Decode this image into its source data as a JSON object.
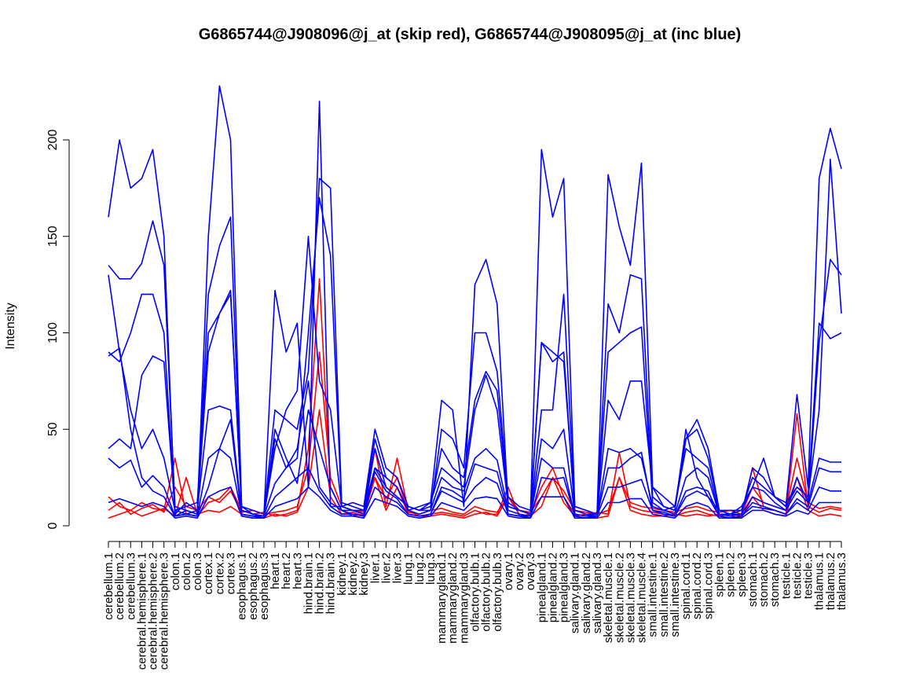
{
  "chart_data": {
    "type": "line",
    "title": "G6865744@J908096@j_at (skip red), G6865744@J908095@j_at (inc blue)",
    "xlabel": "",
    "ylabel": "Intensity",
    "ylim": [
      0,
      228
    ],
    "yticks": [
      0,
      50,
      100,
      150,
      200
    ],
    "grid": false,
    "legend": "none",
    "colors": {
      "red": "#ff0000",
      "blue": "#0000ff"
    },
    "categories": [
      "cerebellum.1",
      "cerebellum.2",
      "cerebellum.3",
      "cerebral.hemisphere.1",
      "cerebral.hemisphere.2",
      "cerebral.hemisphere.3",
      "colon.1",
      "colon.2",
      "colon.3",
      "cortex.1",
      "cortex.2",
      "cortex.3",
      "esophagus.1",
      "esophagus.2",
      "esophagus.3",
      "heart.1",
      "heart.2",
      "heart.3",
      "hind.brain.1",
      "hind.brain.2",
      "hind.brain.3",
      "kidney.1",
      "kidney.2",
      "kidney.3",
      "liver.1",
      "liver.2",
      "liver.3",
      "lung.1",
      "lung.2",
      "lung.3",
      "mammarygland.1",
      "mammarygland.2",
      "mammarygland.3",
      "olfactory.bulb.1",
      "olfactory.bulb.2",
      "olfactory.bulb.3",
      "ovary.1",
      "ovary.2",
      "ovary.3",
      "pinealgland.1",
      "pinealgland.2",
      "pinealgland.3",
      "salivary.gland.1",
      "salivary.gland.2",
      "salivary.gland.3",
      "skeletal.muscle.1",
      "skeletal.muscle.2",
      "skeletal.muscle.3",
      "skeletal.muscle.4",
      "small.intestine.1",
      "small.intestine.2",
      "small.intestine.3",
      "spinal.cord.1",
      "spinal.cord.2",
      "spinal.cord.3",
      "spleen.1",
      "spleen.2",
      "spleen.3",
      "stomach.1",
      "stomach.2",
      "stomach.3",
      "testicle.1",
      "testicle.2",
      "testicle.3",
      "thalamus.1",
      "thalamus.2",
      "thalamus.3"
    ],
    "series": [
      {
        "color": "red",
        "values": [
          15,
          10,
          8,
          12,
          9,
          8,
          35,
          6,
          5,
          12,
          14,
          20,
          8,
          6,
          7,
          5,
          6,
          8,
          40,
          128,
          20,
          8,
          5,
          6,
          40,
          10,
          35,
          8,
          5,
          6,
          7,
          6,
          5,
          8,
          6,
          6,
          20,
          5,
          6,
          20,
          30,
          15,
          6,
          5,
          7,
          6,
          38,
          10,
          8,
          7,
          6,
          5,
          7,
          8,
          6,
          5,
          6,
          5,
          30,
          10,
          8,
          6,
          58,
          10,
          7,
          9,
          8
        ]
      },
      {
        "color": "red",
        "values": [
          4,
          6,
          8,
          5,
          7,
          9,
          5,
          25,
          6,
          8,
          7,
          10,
          6,
          5,
          4,
          6,
          5,
          7,
          20,
          60,
          15,
          6,
          7,
          5,
          25,
          8,
          20,
          6,
          5,
          5,
          6,
          5,
          4,
          6,
          7,
          5,
          15,
          6,
          5,
          10,
          25,
          12,
          5,
          6,
          4,
          5,
          25,
          8,
          6,
          5,
          5,
          6,
          5,
          6,
          5,
          6,
          5,
          4,
          15,
          8,
          6,
          5,
          25,
          8,
          5,
          6,
          5
        ]
      },
      {
        "color": "red",
        "values": [
          8,
          12,
          6,
          9,
          11,
          7,
          20,
          10,
          8,
          15,
          12,
          18,
          7,
          8,
          6,
          7,
          8,
          10,
          30,
          90,
          25,
          10,
          8,
          7,
          25,
          14,
          25,
          7,
          6,
          8,
          9,
          7,
          6,
          10,
          8,
          7,
          15,
          8,
          7,
          15,
          25,
          18,
          8,
          7,
          6,
          8,
          25,
          12,
          10,
          9,
          8,
          7,
          9,
          10,
          8,
          7,
          8,
          6,
          20,
          12,
          10,
          8,
          35,
          12,
          9,
          10,
          9
        ]
      },
      {
        "color": "blue",
        "values": [
          160,
          200,
          175,
          180,
          195,
          150,
          5,
          8,
          6,
          150,
          228,
          200,
          10,
          6,
          5,
          122,
          90,
          105,
          20,
          220,
          10,
          10,
          8,
          6,
          40,
          20,
          15,
          10,
          8,
          12,
          65,
          60,
          10,
          125,
          138,
          115,
          10,
          8,
          6,
          195,
          160,
          180,
          10,
          8,
          6,
          182,
          155,
          135,
          188,
          20,
          10,
          8,
          50,
          25,
          15,
          8,
          6,
          10,
          20,
          35,
          15,
          10,
          68,
          20,
          180,
          206,
          185
        ]
      },
      {
        "color": "blue",
        "values": [
          130,
          90,
          60,
          40,
          50,
          35,
          8,
          10,
          12,
          100,
          110,
          120,
          10,
          8,
          6,
          60,
          55,
          50,
          80,
          180,
          175,
          12,
          10,
          8,
          30,
          25,
          20,
          8,
          6,
          8,
          50,
          45,
          30,
          100,
          100,
          80,
          15,
          10,
          8,
          95,
          90,
          85,
          8,
          6,
          6,
          115,
          100,
          130,
          128,
          15,
          10,
          8,
          45,
          55,
          40,
          8,
          8,
          8,
          25,
          20,
          15,
          10,
          20,
          15,
          105,
          97,
          100
        ]
      },
      {
        "color": "blue",
        "values": [
          90,
          85,
          100,
          120,
          120,
          100,
          6,
          12,
          8,
          90,
          110,
          122,
          8,
          6,
          5,
          45,
          30,
          35,
          100,
          170,
          140,
          10,
          12,
          10,
          50,
          30,
          25,
          10,
          8,
          10,
          40,
          30,
          25,
          65,
          80,
          70,
          12,
          8,
          6,
          95,
          85,
          90,
          6,
          5,
          6,
          90,
          95,
          100,
          103,
          12,
          8,
          10,
          40,
          35,
          30,
          6,
          6,
          8,
          20,
          18,
          12,
          8,
          25,
          12,
          95,
          138,
          130
        ]
      },
      {
        "color": "blue",
        "values": [
          135,
          128,
          128,
          136,
          158,
          135,
          10,
          8,
          6,
          120,
          145,
          160,
          8,
          6,
          5,
          40,
          60,
          70,
          150,
          75,
          60,
          10,
          8,
          8,
          45,
          25,
          20,
          8,
          10,
          12,
          30,
          25,
          20,
          60,
          78,
          60,
          10,
          8,
          6,
          60,
          60,
          120,
          10,
          8,
          6,
          65,
          55,
          75,
          75,
          20,
          15,
          10,
          45,
          50,
          35,
          8,
          6,
          6,
          30,
          25,
          15,
          12,
          20,
          15,
          60,
          190,
          110
        ]
      },
      {
        "color": "blue",
        "values": [
          40,
          45,
          40,
          78,
          88,
          85,
          8,
          6,
          8,
          60,
          62,
          60,
          6,
          5,
          5,
          22,
          30,
          40,
          75,
          20,
          12,
          8,
          8,
          6,
          30,
          20,
          15,
          10,
          8,
          8,
          25,
          20,
          18,
          35,
          40,
          34,
          8,
          6,
          5,
          45,
          40,
          50,
          6,
          5,
          5,
          40,
          38,
          40,
          35,
          10,
          8,
          6,
          25,
          30,
          25,
          6,
          5,
          6,
          15,
          12,
          10,
          8,
          18,
          12,
          35,
          33,
          33
        ]
      },
      {
        "color": "blue",
        "values": [
          35,
          30,
          34,
          20,
          26,
          20,
          5,
          6,
          5,
          35,
          40,
          55,
          5,
          4,
          4,
          15,
          20,
          25,
          30,
          18,
          10,
          6,
          6,
          5,
          20,
          15,
          12,
          6,
          5,
          6,
          18,
          15,
          12,
          20,
          25,
          22,
          6,
          5,
          4,
          25,
          24,
          25,
          5,
          4,
          5,
          20,
          20,
          22,
          24,
          8,
          6,
          5,
          15,
          18,
          15,
          5,
          4,
          5,
          10,
          9,
          8,
          6,
          12,
          8,
          20,
          18,
          18
        ]
      },
      {
        "color": "blue",
        "values": [
          12,
          14,
          12,
          10,
          12,
          10,
          4,
          5,
          4,
          15,
          18,
          20,
          5,
          4,
          4,
          10,
          12,
          14,
          20,
          15,
          8,
          5,
          5,
          4,
          14,
          12,
          10,
          5,
          4,
          5,
          12,
          10,
          8,
          14,
          15,
          14,
          5,
          4,
          4,
          15,
          15,
          15,
          4,
          4,
          4,
          12,
          12,
          14,
          14,
          6,
          5,
          4,
          10,
          12,
          10,
          4,
          4,
          4,
          8,
          8,
          6,
          5,
          8,
          6,
          12,
          12,
          12
        ]
      },
      {
        "color": "blue",
        "values": [
          88,
          92,
          50,
          25,
          18,
          15,
          5,
          6,
          5,
          20,
          40,
          35,
          6,
          5,
          4,
          50,
          35,
          22,
          60,
          40,
          20,
          8,
          6,
          5,
          28,
          18,
          14,
          6,
          5,
          6,
          20,
          18,
          14,
          32,
          30,
          28,
          6,
          5,
          5,
          35,
          30,
          30,
          5,
          4,
          5,
          30,
          30,
          35,
          38,
          8,
          7,
          5,
          18,
          20,
          18,
          5,
          4,
          5,
          12,
          10,
          8,
          6,
          14,
          10,
          30,
          28,
          28
        ]
      }
    ]
  }
}
